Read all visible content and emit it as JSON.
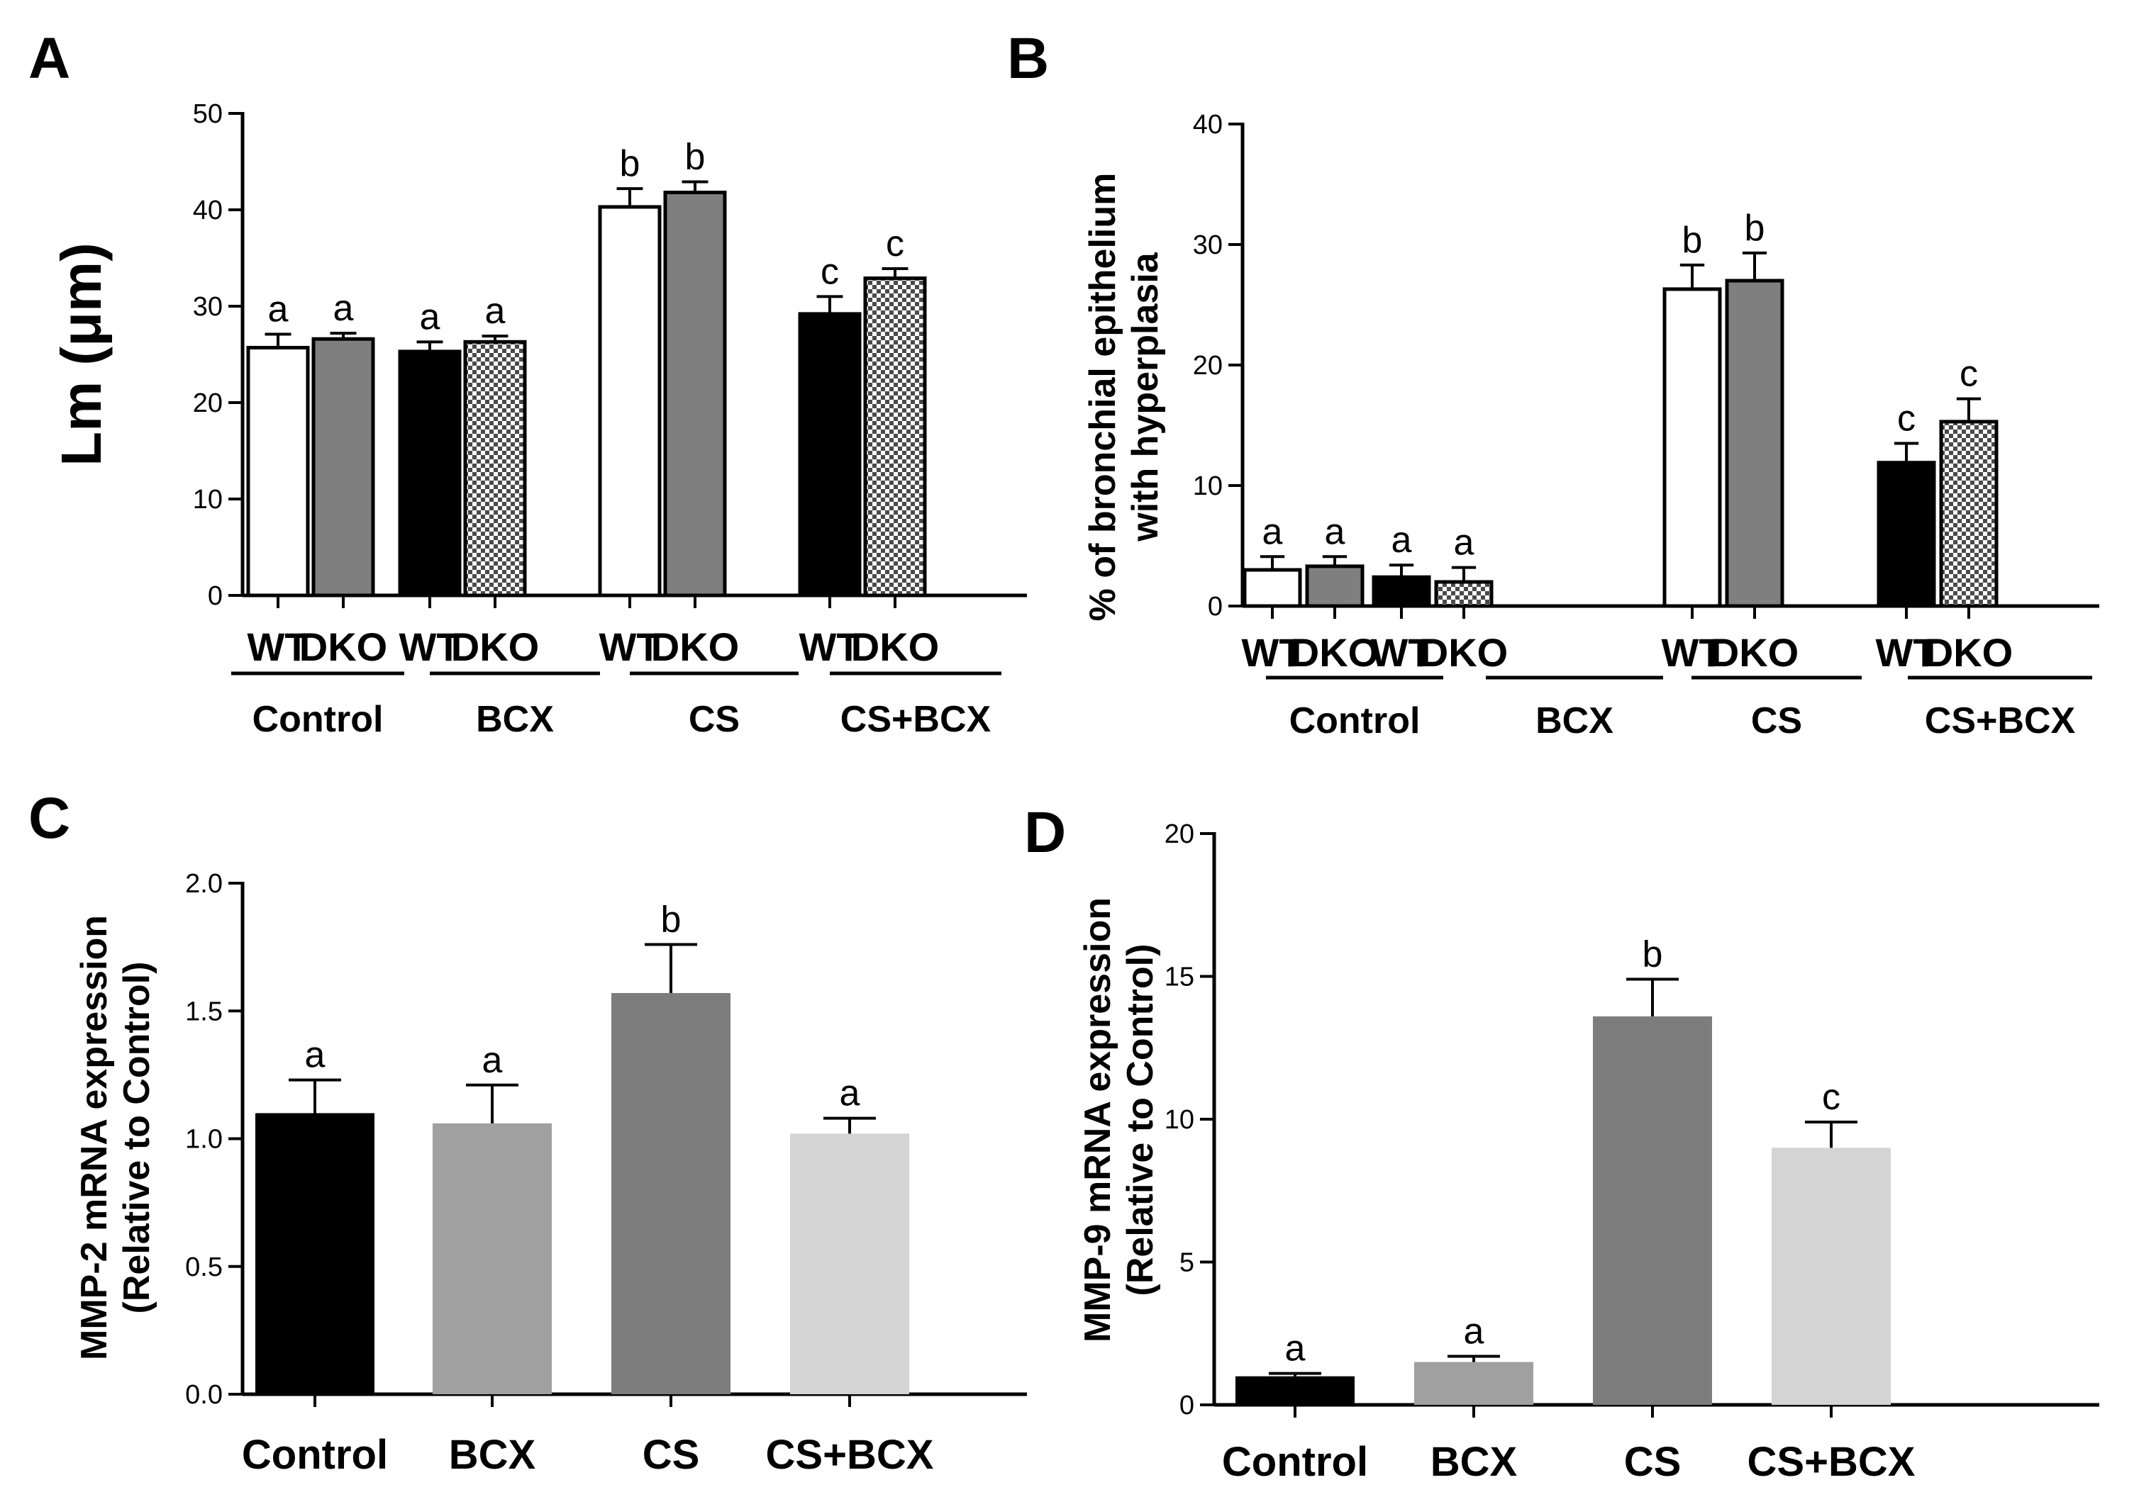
{
  "chart_data": [
    {
      "type": "bar",
      "panel": "A",
      "ylabel": "Lm (μm)",
      "ylim": [
        0,
        50
      ],
      "yticks": [
        "0",
        "10",
        "20",
        "30",
        "40",
        "50"
      ],
      "groups": [
        "Control",
        "BCX",
        "CS",
        "CS+BCX"
      ],
      "categories": [
        "WT",
        "DKO",
        "WT",
        "DKO",
        "WT",
        "DKO",
        "WT",
        "DKO"
      ],
      "values": [
        25.7,
        26.6,
        25.3,
        26.3,
        40.3,
        41.8,
        29.2,
        32.9
      ],
      "errors": [
        1.4,
        0.6,
        1.0,
        0.6,
        1.9,
        1.1,
        1.8,
        1.0
      ],
      "labels": [
        "a",
        "a",
        "a",
        "a",
        "b",
        "b",
        "c",
        "c"
      ],
      "fills": [
        "white",
        "gray",
        "black",
        "check",
        "white",
        "gray",
        "black",
        "check"
      ]
    },
    {
      "type": "bar",
      "panel": "B",
      "ylabel": [
        "% of bronchial epithelium",
        "with hyperplasia"
      ],
      "ylim": [
        0,
        40
      ],
      "yticks": [
        "0",
        "10",
        "20",
        "30",
        "40"
      ],
      "groups": [
        "Control",
        "BCX",
        "CS",
        "CS+BCX"
      ],
      "categories": [
        "WT",
        "DKO",
        "WT",
        "DKO",
        "WT",
        "DKO",
        "WT",
        "DKO"
      ],
      "values": [
        3.0,
        3.3,
        2.4,
        2.0,
        26.3,
        27.0,
        11.9,
        15.3
      ],
      "errors": [
        1.1,
        0.8,
        1.0,
        1.2,
        2.0,
        2.3,
        1.6,
        1.9
      ],
      "labels": [
        "a",
        "a",
        "a",
        "a",
        "b",
        "b",
        "c",
        "c"
      ],
      "fills": [
        "white",
        "gray",
        "black",
        "check",
        "white",
        "gray",
        "black",
        "check"
      ]
    },
    {
      "type": "bar",
      "panel": "C",
      "ylabel": [
        "MMP-2 mRNA expression",
        "(Relative to Control)"
      ],
      "ylim": [
        0,
        2.0
      ],
      "yticks": [
        "0.0",
        "0.5",
        "1.0",
        "1.5",
        "2.0"
      ],
      "categories": [
        "Control",
        "BCX",
        "CS",
        "CS+BCX"
      ],
      "values": [
        1.1,
        1.06,
        1.57,
        1.02
      ],
      "errors": [
        0.13,
        0.15,
        0.19,
        0.06
      ],
      "labels": [
        "a",
        "a",
        "b",
        "a"
      ],
      "colors": [
        "#000000",
        "#a0a0a0",
        "#7d7d7d",
        "#d4d4d4"
      ]
    },
    {
      "type": "bar",
      "panel": "D",
      "ylabel": [
        "MMP-9 mRNA expression",
        "(Relative to Control)"
      ],
      "ylim": [
        0,
        20
      ],
      "yticks": [
        "0",
        "5",
        "10",
        "15",
        "20"
      ],
      "categories": [
        "Control",
        "BCX",
        "CS",
        "CS+BCX"
      ],
      "values": [
        1.0,
        1.5,
        13.6,
        9.0
      ],
      "errors": [
        0.1,
        0.2,
        1.3,
        0.9
      ],
      "labels": [
        "a",
        "a",
        "b",
        "c"
      ],
      "colors": [
        "#000000",
        "#a0a0a0",
        "#7d7d7d",
        "#d4d4d4"
      ]
    }
  ]
}
